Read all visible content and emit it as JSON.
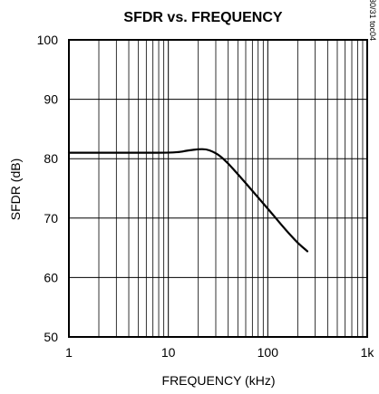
{
  "chart_data": {
    "type": "line",
    "title": "SFDR vs. FREQUENCY",
    "xlabel": "FREQUENCY (kHz)",
    "ylabel": "SFDR (dB)",
    "x_scale": "log",
    "xlim": [
      1,
      1000
    ],
    "ylim": [
      50,
      100
    ],
    "x_ticks": [
      1,
      10,
      100,
      1000
    ],
    "x_tick_labels": [
      "1",
      "10",
      "100",
      "1k"
    ],
    "y_ticks": [
      50,
      60,
      70,
      80,
      90,
      100
    ],
    "y_tick_labels": [
      "50",
      "60",
      "70",
      "80",
      "90",
      "100"
    ],
    "grid": true,
    "series": [
      {
        "x": [
          1,
          5,
          12,
          16,
          20,
          24,
          28,
          33,
          40,
          50,
          70,
          100,
          150,
          200,
          250
        ],
        "y": [
          81,
          81,
          81,
          81.4,
          81.6,
          81.6,
          81.2,
          80.5,
          79.2,
          77.4,
          74.6,
          71.6,
          68.1,
          65.8,
          64.4
        ]
      }
    ],
    "side_label": "MAX1027/30/31 toc04"
  }
}
